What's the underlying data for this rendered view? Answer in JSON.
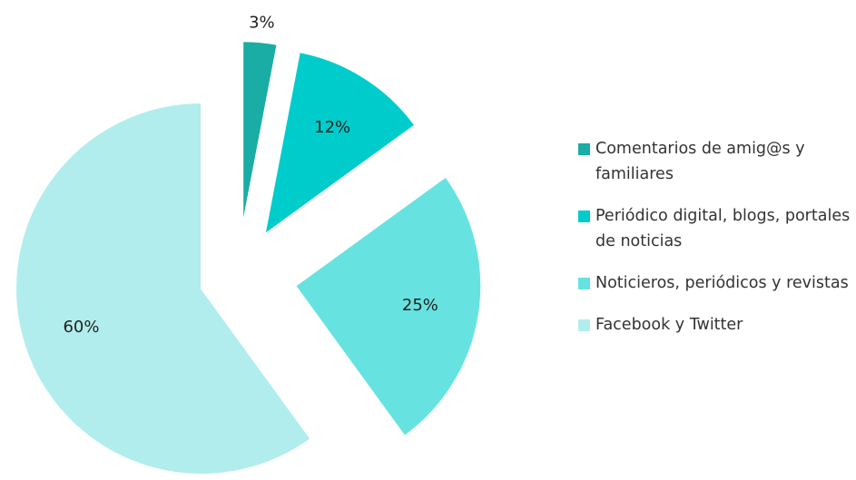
{
  "chart_data": {
    "type": "pie",
    "categories": [
      "Comentarios de amig@s y familiares",
      "Periódico digital, blogs, portales de noticias",
      "Noticieros, periódicos y revistas",
      "Facebook y Twitter"
    ],
    "values": [
      3,
      12,
      25,
      60
    ],
    "value_labels": [
      "3%",
      "12%",
      "25%",
      "60%"
    ],
    "colors": [
      "#1aada5",
      "#00cccc",
      "#66e3e0",
      "#b2eded"
    ],
    "legend": "right"
  }
}
